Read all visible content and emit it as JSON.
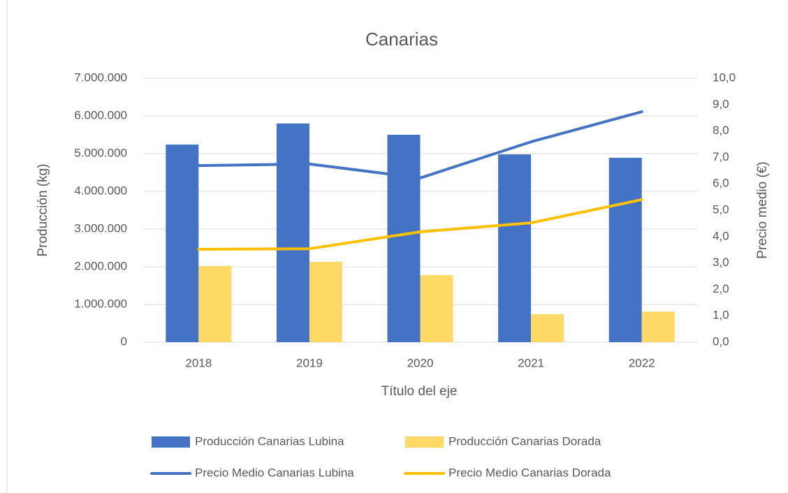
{
  "chart_data": {
    "type": "bar-line",
    "title": "Canarias",
    "x_label": "Título del eje",
    "y_label": "Producción (kg)",
    "y2_label": "Precio medio (€)",
    "categories": [
      "2018",
      "2019",
      "2020",
      "2021",
      "2022"
    ],
    "series": [
      {
        "name": "Producción Canarias Lubina",
        "type": "bar",
        "color": "#4472c4",
        "values": [
          5240000,
          5800000,
          5500000,
          4980000,
          4890000
        ]
      },
      {
        "name": "Producción Canarias Dorada",
        "type": "bar",
        "color": "#ffd966",
        "values": [
          2020000,
          2130000,
          1780000,
          740000,
          810000
        ]
      },
      {
        "name": "Precio Medio Canarias Lubina",
        "type": "line",
        "axis": "y2",
        "color": "#4472c4",
        "values": [
          6.69,
          6.75,
          6.22,
          7.59,
          8.73
        ]
      },
      {
        "name": "Precio Medio Canarias Dorada",
        "type": "line",
        "axis": "y2",
        "color": "#ffc000",
        "values": [
          3.52,
          3.54,
          4.18,
          4.52,
          5.4
        ]
      }
    ],
    "ylim": [
      0,
      7000000
    ],
    "yticks": [
      0,
      {
        "value": 1000000,
        "label": "1.000.000"
      },
      {
        "value": 2000000,
        "label": "2.000.000"
      },
      {
        "value": 3000000,
        "label": "3.000.000"
      },
      {
        "value": 4000000,
        "label": "4.000.000"
      },
      {
        "value": 5000000,
        "label": "5.000.000"
      },
      {
        "value": 6000000,
        "label": "6.000.000"
      },
      {
        "value": 7000000,
        "label": "7.000.000"
      }
    ],
    "y2lim": [
      0,
      10
    ],
    "y2ticks": [
      {
        "value": 0,
        "label": "0,0"
      },
      {
        "value": 1,
        "label": "1,0"
      },
      {
        "value": 2,
        "label": "2,0"
      },
      {
        "value": 3,
        "label": "3,0"
      },
      {
        "value": 4,
        "label": "4,0"
      },
      {
        "value": 5,
        "label": "5,0"
      },
      {
        "value": 6,
        "label": "6,0"
      },
      {
        "value": 7,
        "label": "7,0"
      },
      {
        "value": 8,
        "label": "8,0"
      },
      {
        "value": 9,
        "label": "9,0"
      },
      {
        "value": 10,
        "label": "10,0"
      }
    ],
    "grid": true,
    "legend": "bottom"
  }
}
